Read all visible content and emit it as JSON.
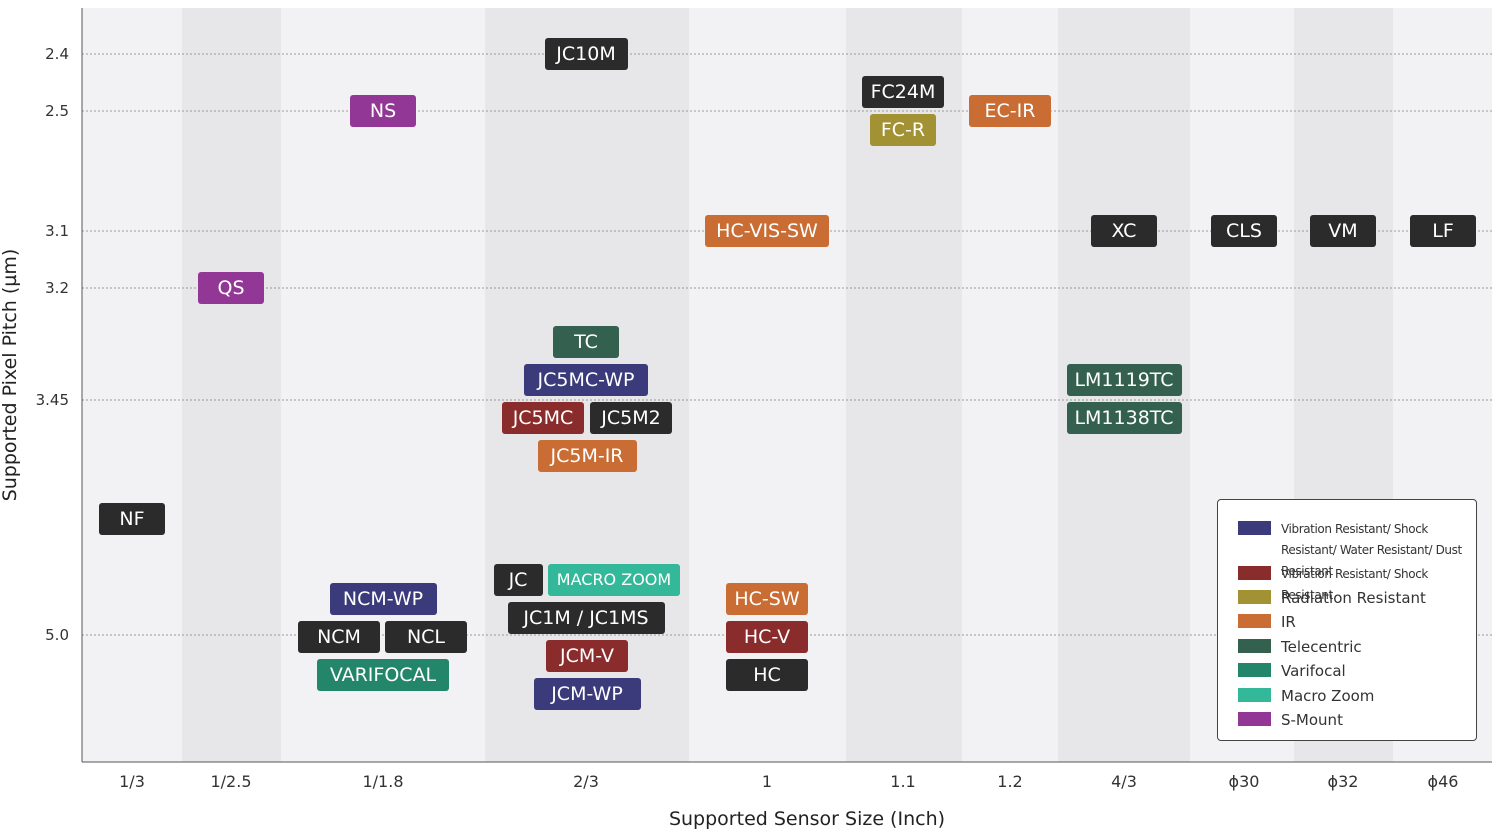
{
  "chart_data": {
    "type": "table",
    "xlabel": "Supported Sensor Size (Inch)",
    "ylabel": "Supported Pixel Pitch (µm)",
    "x_categories": [
      "1/3",
      "1/2.5",
      "1/1.8",
      "2/3",
      "1",
      "1.1",
      "1.2",
      "4/3",
      "ϕ30",
      "ϕ32",
      "ϕ46"
    ],
    "y_ticks": [
      "2.4",
      "2.5",
      "3.1",
      "3.2",
      "3.45",
      "5.0"
    ],
    "colors": {
      "Standard": "#2b2b2b",
      "Vibration Resistant/ Shock Resistant/ Water Resistant/ Dust Resistant": "#3b3b7b",
      "Vibration Resistant/ Shock Resistant": "#8b2c2c",
      "Radiation Resistant": "#a39234",
      "IR": "#c96d35",
      "Telecentric": "#34604f",
      "Varifocal": "#23856a",
      "Macro Zoom": "#33b99a",
      "S-Mount": "#933797"
    },
    "products": [
      {
        "name": "NF",
        "sensor": "1/3",
        "pitch": "between 3.45 and 5.0",
        "category": "Standard"
      },
      {
        "name": "QS",
        "sensor": "1/2.5",
        "pitch": "3.2",
        "category": "S-Mount"
      },
      {
        "name": "NS",
        "sensor": "1/1.8",
        "pitch": "2.5",
        "category": "S-Mount"
      },
      {
        "name": "NCM-WP",
        "sensor": "1/1.8",
        "pitch": "5.0",
        "category": "Vibration Resistant/ Shock Resistant/ Water Resistant/ Dust Resistant"
      },
      {
        "name": "NCM",
        "sensor": "1/1.8",
        "pitch": "5.0",
        "category": "Standard"
      },
      {
        "name": "NCL",
        "sensor": "1/1.8",
        "pitch": "5.0",
        "category": "Standard"
      },
      {
        "name": "VARIFOCAL",
        "sensor": "1/1.8",
        "pitch": "5.0",
        "category": "Varifocal"
      },
      {
        "name": "JC10M",
        "sensor": "2/3",
        "pitch": "2.4",
        "category": "Standard"
      },
      {
        "name": "TC",
        "sensor": "2/3",
        "pitch": "3.45",
        "category": "Telecentric"
      },
      {
        "name": "JC5MC-WP",
        "sensor": "2/3",
        "pitch": "3.45",
        "category": "Vibration Resistant/ Shock Resistant/ Water Resistant/ Dust Resistant"
      },
      {
        "name": "JC5MC",
        "sensor": "2/3",
        "pitch": "3.45",
        "category": "Vibration Resistant/ Shock Resistant"
      },
      {
        "name": "JC5M2",
        "sensor": "2/3",
        "pitch": "3.45",
        "category": "Standard"
      },
      {
        "name": "JC5M-IR",
        "sensor": "2/3",
        "pitch": "3.45",
        "category": "IR"
      },
      {
        "name": "JC",
        "sensor": "2/3",
        "pitch": "5.0",
        "category": "Standard"
      },
      {
        "name": "MACRO ZOOM",
        "sensor": "2/3",
        "pitch": "5.0",
        "category": "Macro Zoom"
      },
      {
        "name": "JC1M / JC1MS",
        "sensor": "2/3",
        "pitch": "5.0",
        "category": "Standard"
      },
      {
        "name": "JCM-V",
        "sensor": "2/3",
        "pitch": "5.0",
        "category": "Vibration Resistant/ Shock Resistant"
      },
      {
        "name": "JCM-WP",
        "sensor": "2/3",
        "pitch": "5.0",
        "category": "Vibration Resistant/ Shock Resistant/ Water Resistant/ Dust Resistant"
      },
      {
        "name": "HC-VIS-SW",
        "sensor": "1",
        "pitch": "3.1",
        "category": "IR"
      },
      {
        "name": "HC-SW",
        "sensor": "1",
        "pitch": "5.0",
        "category": "IR"
      },
      {
        "name": "HC-V",
        "sensor": "1",
        "pitch": "5.0",
        "category": "Vibration Resistant/ Shock Resistant"
      },
      {
        "name": "HC",
        "sensor": "1",
        "pitch": "5.0",
        "category": "Standard"
      },
      {
        "name": "FC24M",
        "sensor": "1.1",
        "pitch": "2.5",
        "category": "Standard"
      },
      {
        "name": "FC-R",
        "sensor": "1.1",
        "pitch": "2.5",
        "category": "Radiation Resistant"
      },
      {
        "name": "EC-IR",
        "sensor": "1.2",
        "pitch": "2.5",
        "category": "IR"
      },
      {
        "name": "XC",
        "sensor": "4/3",
        "pitch": "3.1",
        "category": "Standard"
      },
      {
        "name": "LM1119TC",
        "sensor": "4/3",
        "pitch": "3.45",
        "category": "Telecentric"
      },
      {
        "name": "LM1138TC",
        "sensor": "4/3",
        "pitch": "3.45",
        "category": "Telecentric"
      },
      {
        "name": "CLS",
        "sensor": "ϕ30",
        "pitch": "3.1",
        "category": "Standard"
      },
      {
        "name": "VM",
        "sensor": "ϕ32",
        "pitch": "3.1",
        "category": "Standard"
      },
      {
        "name": "LF",
        "sensor": "ϕ46",
        "pitch": "3.1",
        "category": "Standard"
      }
    ],
    "legend": [
      {
        "label": "Vibration Resistant/ Shock Resistant/ Water Resistant/ Dust Resistant",
        "color": "#3b3b7b"
      },
      {
        "label": "Vibration Resistant/ Shock Resistant",
        "color": "#8b2c2c"
      },
      {
        "label": "Radiation Resistant",
        "color": "#a39234"
      },
      {
        "label": "IR",
        "color": "#c96d35"
      },
      {
        "label": "Telecentric",
        "color": "#34604f"
      },
      {
        "label": "Varifocal",
        "color": "#23856a"
      },
      {
        "label": "Macro Zoom",
        "color": "#33b99a"
      },
      {
        "label": "S-Mount",
        "color": "#933797"
      }
    ]
  }
}
